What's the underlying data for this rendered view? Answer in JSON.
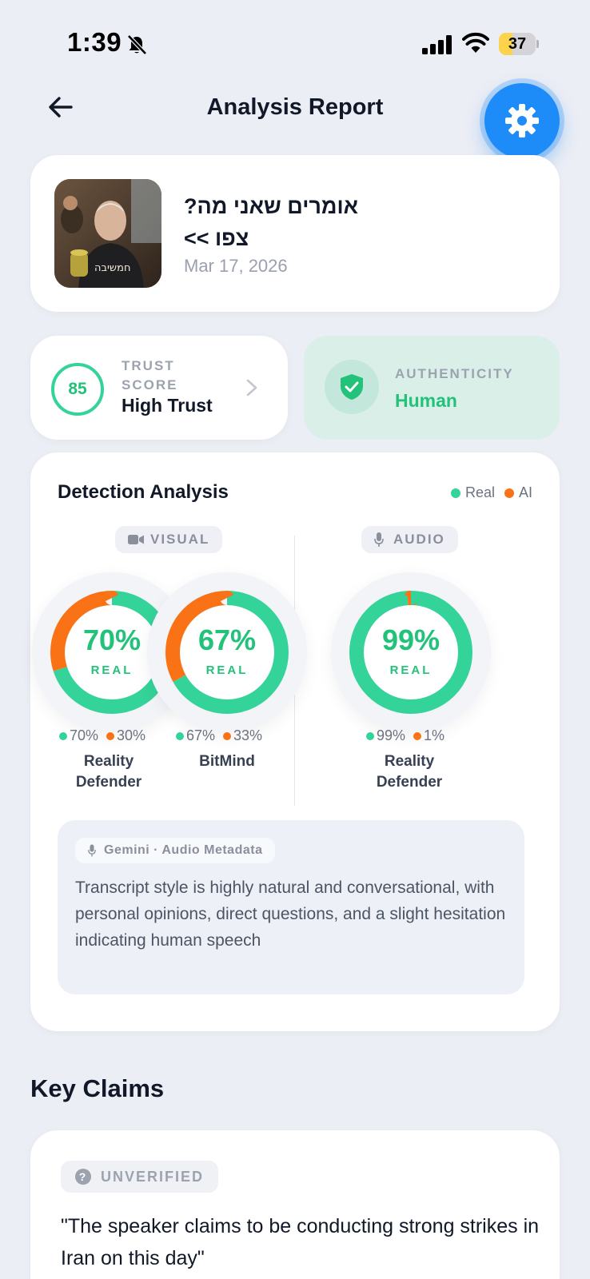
{
  "status_bar": {
    "time": "1:39",
    "battery": "37",
    "battery_level": 0.37,
    "icons": [
      "bell-slash-icon",
      "signal-icon",
      "wifi-icon",
      "battery-icon"
    ]
  },
  "header": {
    "title": "Analysis Report",
    "back_icon": "arrow-left-icon",
    "settings_icon": "gear-icon"
  },
  "media": {
    "title_line1": "אומרים שאני מה?",
    "title_line2": "צפו >>",
    "date": "Mar 17, 2026",
    "thumbnail_caption": "חמשיבה"
  },
  "trust": {
    "score": "85",
    "label": "TRUST SCORE",
    "value": "High Trust"
  },
  "authenticity": {
    "label": "AUTHENTICITY",
    "value": "Human"
  },
  "detection": {
    "title": "Detection Analysis",
    "legend": {
      "real": "Real",
      "ai": "AI"
    },
    "colors": {
      "real": "#34d399",
      "ai": "#f97316"
    },
    "visual_label": "VISUAL",
    "audio_label": "AUDIO",
    "real_label": "REAL",
    "engines": [
      {
        "pct": "70%",
        "real": 70,
        "ai": 30,
        "real_text": "70%",
        "ai_text": "30%",
        "name_line1": "Reality",
        "name_line2": "Defender"
      },
      {
        "pct": "67%",
        "real": 67,
        "ai": 33,
        "real_text": "67%",
        "ai_text": "33%",
        "name_line1": "BitMind",
        "name_line2": ""
      },
      {
        "pct": "99%",
        "real": 99,
        "ai": 1,
        "real_text": "99%",
        "ai_text": "1%",
        "name_line1": "Reality",
        "name_line2": "Defender"
      }
    ],
    "gemini": {
      "label": "Gemini · Audio Metadata",
      "text": "Transcript style is highly natural and conversational, with personal opinions, direct questions, and a slight hesitation indicating human speech"
    }
  },
  "key_claims": {
    "title": "Key Claims",
    "claims": [
      {
        "status": "UNVERIFIED",
        "text": "\"The speaker claims to be conducting strong strikes in Iran on this day\""
      }
    ]
  }
}
